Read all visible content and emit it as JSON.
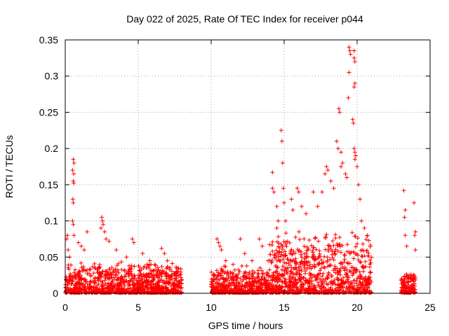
{
  "chart_data": {
    "type": "scatter",
    "title": "Day 022 of 2025, Rate Of TEC Index for receiver p044",
    "xlabel": "GPS time / hours",
    "ylabel": "ROTI / TECUs",
    "xlim": [
      0,
      25
    ],
    "ylim": [
      0,
      0.35
    ],
    "x_ticks": [
      0,
      5,
      10,
      15,
      20,
      25
    ],
    "x_tick_labels": [
      "0",
      "5",
      "10",
      "15",
      "20",
      "25"
    ],
    "y_ticks": [
      0,
      0.05,
      0.1,
      0.15,
      0.2,
      0.25,
      0.3,
      0.35
    ],
    "y_tick_labels": [
      "0",
      "0.05",
      "0.1",
      "0.15",
      "0.2",
      "0.25",
      "0.3",
      "0.35"
    ],
    "grid": true,
    "marker": "+",
    "marker_color": "#ff0000",
    "series": [
      {
        "name": "ROTI",
        "clusters": [
          {
            "x_range": [
              0.0,
              8.0
            ],
            "typical_max": 0.045
          },
          {
            "x_range": [
              10.0,
              14.0
            ],
            "typical_max": 0.04
          },
          {
            "x_range": [
              14.0,
              21.0
            ],
            "typical_max": 0.09
          },
          {
            "x_range": [
              23.0,
              24.0
            ],
            "typical_max": 0.03
          }
        ],
        "points": [
          [
            0.1,
            0.075
          ],
          [
            0.15,
            0.08
          ],
          [
            0.2,
            0.06
          ],
          [
            0.3,
            0.05
          ],
          [
            0.55,
            0.185
          ],
          [
            0.6,
            0.18
          ],
          [
            0.5,
            0.17
          ],
          [
            0.58,
            0.165
          ],
          [
            0.55,
            0.155
          ],
          [
            0.58,
            0.152
          ],
          [
            0.52,
            0.13
          ],
          [
            0.55,
            0.125
          ],
          [
            0.5,
            0.1
          ],
          [
            0.55,
            0.095
          ],
          [
            0.6,
            0.08
          ],
          [
            0.9,
            0.07
          ],
          [
            1.1,
            0.065
          ],
          [
            1.5,
            0.085
          ],
          [
            1.3,
            0.06
          ],
          [
            2.5,
            0.105
          ],
          [
            2.55,
            0.1
          ],
          [
            2.6,
            0.095
          ],
          [
            2.45,
            0.09
          ],
          [
            2.7,
            0.085
          ],
          [
            2.8,
            0.075
          ],
          [
            3.0,
            0.072
          ],
          [
            3.5,
            0.06
          ],
          [
            4.2,
            0.05
          ],
          [
            4.6,
            0.075
          ],
          [
            4.7,
            0.07
          ],
          [
            5.3,
            0.055
          ],
          [
            5.8,
            0.045
          ],
          [
            6.6,
            0.062
          ],
          [
            6.8,
            0.055
          ],
          [
            7.0,
            0.045
          ],
          [
            7.2,
            0.035
          ],
          [
            7.6,
            0.03
          ],
          [
            10.4,
            0.075
          ],
          [
            10.5,
            0.07
          ],
          [
            10.6,
            0.065
          ],
          [
            10.7,
            0.06
          ],
          [
            11.0,
            0.045
          ],
          [
            11.5,
            0.04
          ],
          [
            12.0,
            0.075
          ],
          [
            12.3,
            0.055
          ],
          [
            12.8,
            0.045
          ],
          [
            13.3,
            0.075
          ],
          [
            13.5,
            0.065
          ],
          [
            13.9,
            0.045
          ],
          [
            14.2,
            0.167
          ],
          [
            14.2,
            0.145
          ],
          [
            14.3,
            0.14
          ],
          [
            14.5,
            0.12
          ],
          [
            14.6,
            0.1
          ],
          [
            14.5,
            0.09
          ],
          [
            14.8,
            0.225
          ],
          [
            14.85,
            0.21
          ],
          [
            14.9,
            0.18
          ],
          [
            14.95,
            0.145
          ],
          [
            15.0,
            0.125
          ],
          [
            15.1,
            0.1
          ],
          [
            15.5,
            0.13
          ],
          [
            15.6,
            0.115
          ],
          [
            15.9,
            0.145
          ],
          [
            16.0,
            0.14
          ],
          [
            16.2,
            0.12
          ],
          [
            16.5,
            0.11
          ],
          [
            17.0,
            0.14
          ],
          [
            17.3,
            0.12
          ],
          [
            17.6,
            0.14
          ],
          [
            17.8,
            0.165
          ],
          [
            17.9,
            0.175
          ],
          [
            18.0,
            0.17
          ],
          [
            18.2,
            0.155
          ],
          [
            18.4,
            0.145
          ],
          [
            18.6,
            0.21
          ],
          [
            18.7,
            0.2
          ],
          [
            18.9,
            0.195
          ],
          [
            18.9,
            0.175
          ],
          [
            18.75,
            0.255
          ],
          [
            18.8,
            0.25
          ],
          [
            19.0,
            0.18
          ],
          [
            19.2,
            0.165
          ],
          [
            19.3,
            0.16
          ],
          [
            19.45,
            0.34
          ],
          [
            19.5,
            0.335
          ],
          [
            19.55,
            0.33
          ],
          [
            19.45,
            0.305
          ],
          [
            19.4,
            0.27
          ],
          [
            19.8,
            0.335
          ],
          [
            19.8,
            0.325
          ],
          [
            19.85,
            0.32
          ],
          [
            19.85,
            0.29
          ],
          [
            19.8,
            0.285
          ],
          [
            19.7,
            0.24
          ],
          [
            19.75,
            0.235
          ],
          [
            19.8,
            0.2
          ],
          [
            19.85,
            0.195
          ],
          [
            19.9,
            0.19
          ],
          [
            19.85,
            0.185
          ],
          [
            20.0,
            0.175
          ],
          [
            20.1,
            0.15
          ],
          [
            20.2,
            0.13
          ],
          [
            20.3,
            0.1
          ],
          [
            20.5,
            0.09
          ],
          [
            20.7,
            0.08
          ],
          [
            23.2,
            0.142
          ],
          [
            23.3,
            0.115
          ],
          [
            23.25,
            0.105
          ],
          [
            23.3,
            0.08
          ],
          [
            23.4,
            0.065
          ],
          [
            23.9,
            0.125
          ],
          [
            24.0,
            0.085
          ],
          [
            23.95,
            0.08
          ],
          [
            24.0,
            0.06
          ]
        ]
      }
    ]
  }
}
